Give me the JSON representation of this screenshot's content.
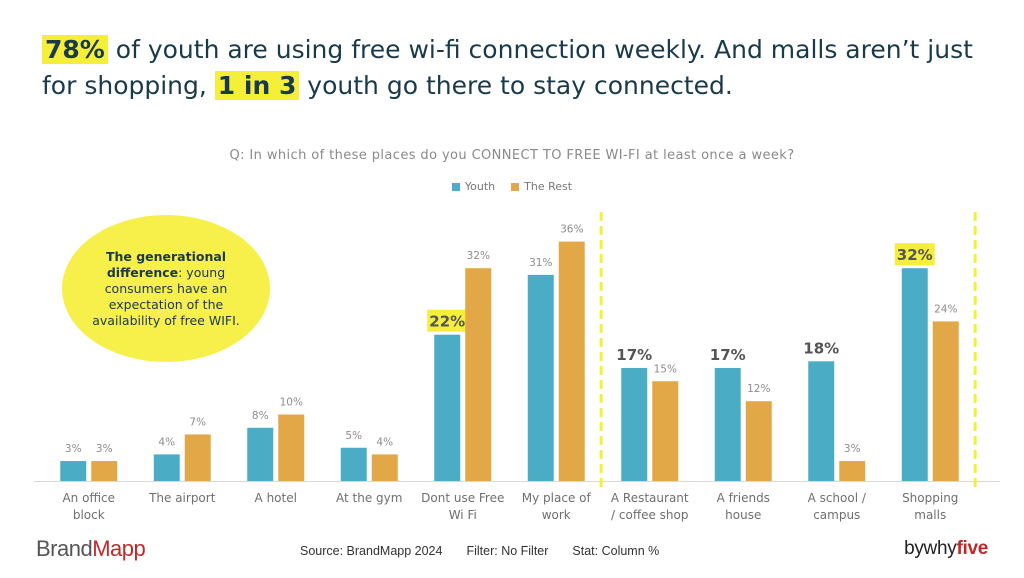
{
  "headline": {
    "hl1": "78%",
    "t1": " of youth are using free wi-fi connection weekly. And malls aren’t just for shopping, ",
    "hl2": "1 in 3",
    "t2": " youth go there to stay connected."
  },
  "bubble": {
    "bold": "The generational difference",
    "rest": ": young consumers have an expectation of the availability of free WIFI."
  },
  "footer": {
    "logo_a": "Brand",
    "logo_b": "Mapp",
    "source": "Source: BrandMapp 2024",
    "filter": "Filter: No Filter",
    "stat": "Stat: Column %",
    "brand_a": "bywhy",
    "brand_b": "five"
  },
  "colors": {
    "youth": "#4bacc6",
    "rest": "#e2a848",
    "highlight": "#f5ef3a"
  },
  "chart_data": {
    "type": "bar",
    "title": "Q:  In which of these places do you CONNECT TO FREE WI-FI at least once a week?",
    "xlabel": "",
    "ylabel": "",
    "ylim": [
      0,
      40
    ],
    "legend_position": "top-center",
    "grid": false,
    "categories": [
      [
        "An office",
        "block"
      ],
      [
        "The airport"
      ],
      [
        "A hotel"
      ],
      [
        "At the gym"
      ],
      [
        "Dont use Free",
        "Wi Fi"
      ],
      [
        "My place of",
        "work"
      ],
      [
        "A Restaurant",
        "/ coffee shop"
      ],
      [
        "A friends",
        "house"
      ],
      [
        "A school /",
        "campus"
      ],
      [
        "Shopping",
        "malls"
      ]
    ],
    "series": [
      {
        "name": "Youth",
        "values": [
          3,
          4,
          8,
          5,
          22,
          31,
          17,
          17,
          18,
          32
        ]
      },
      {
        "name": "The Rest",
        "values": [
          3,
          7,
          10,
          4,
          32,
          36,
          15,
          12,
          3,
          24
        ]
      }
    ],
    "value_suffix": "%",
    "emphasized_labels": [
      4,
      6,
      7,
      8,
      9
    ],
    "highlighted_labels": [
      4,
      9
    ],
    "dividers_after": [
      5,
      9
    ]
  }
}
